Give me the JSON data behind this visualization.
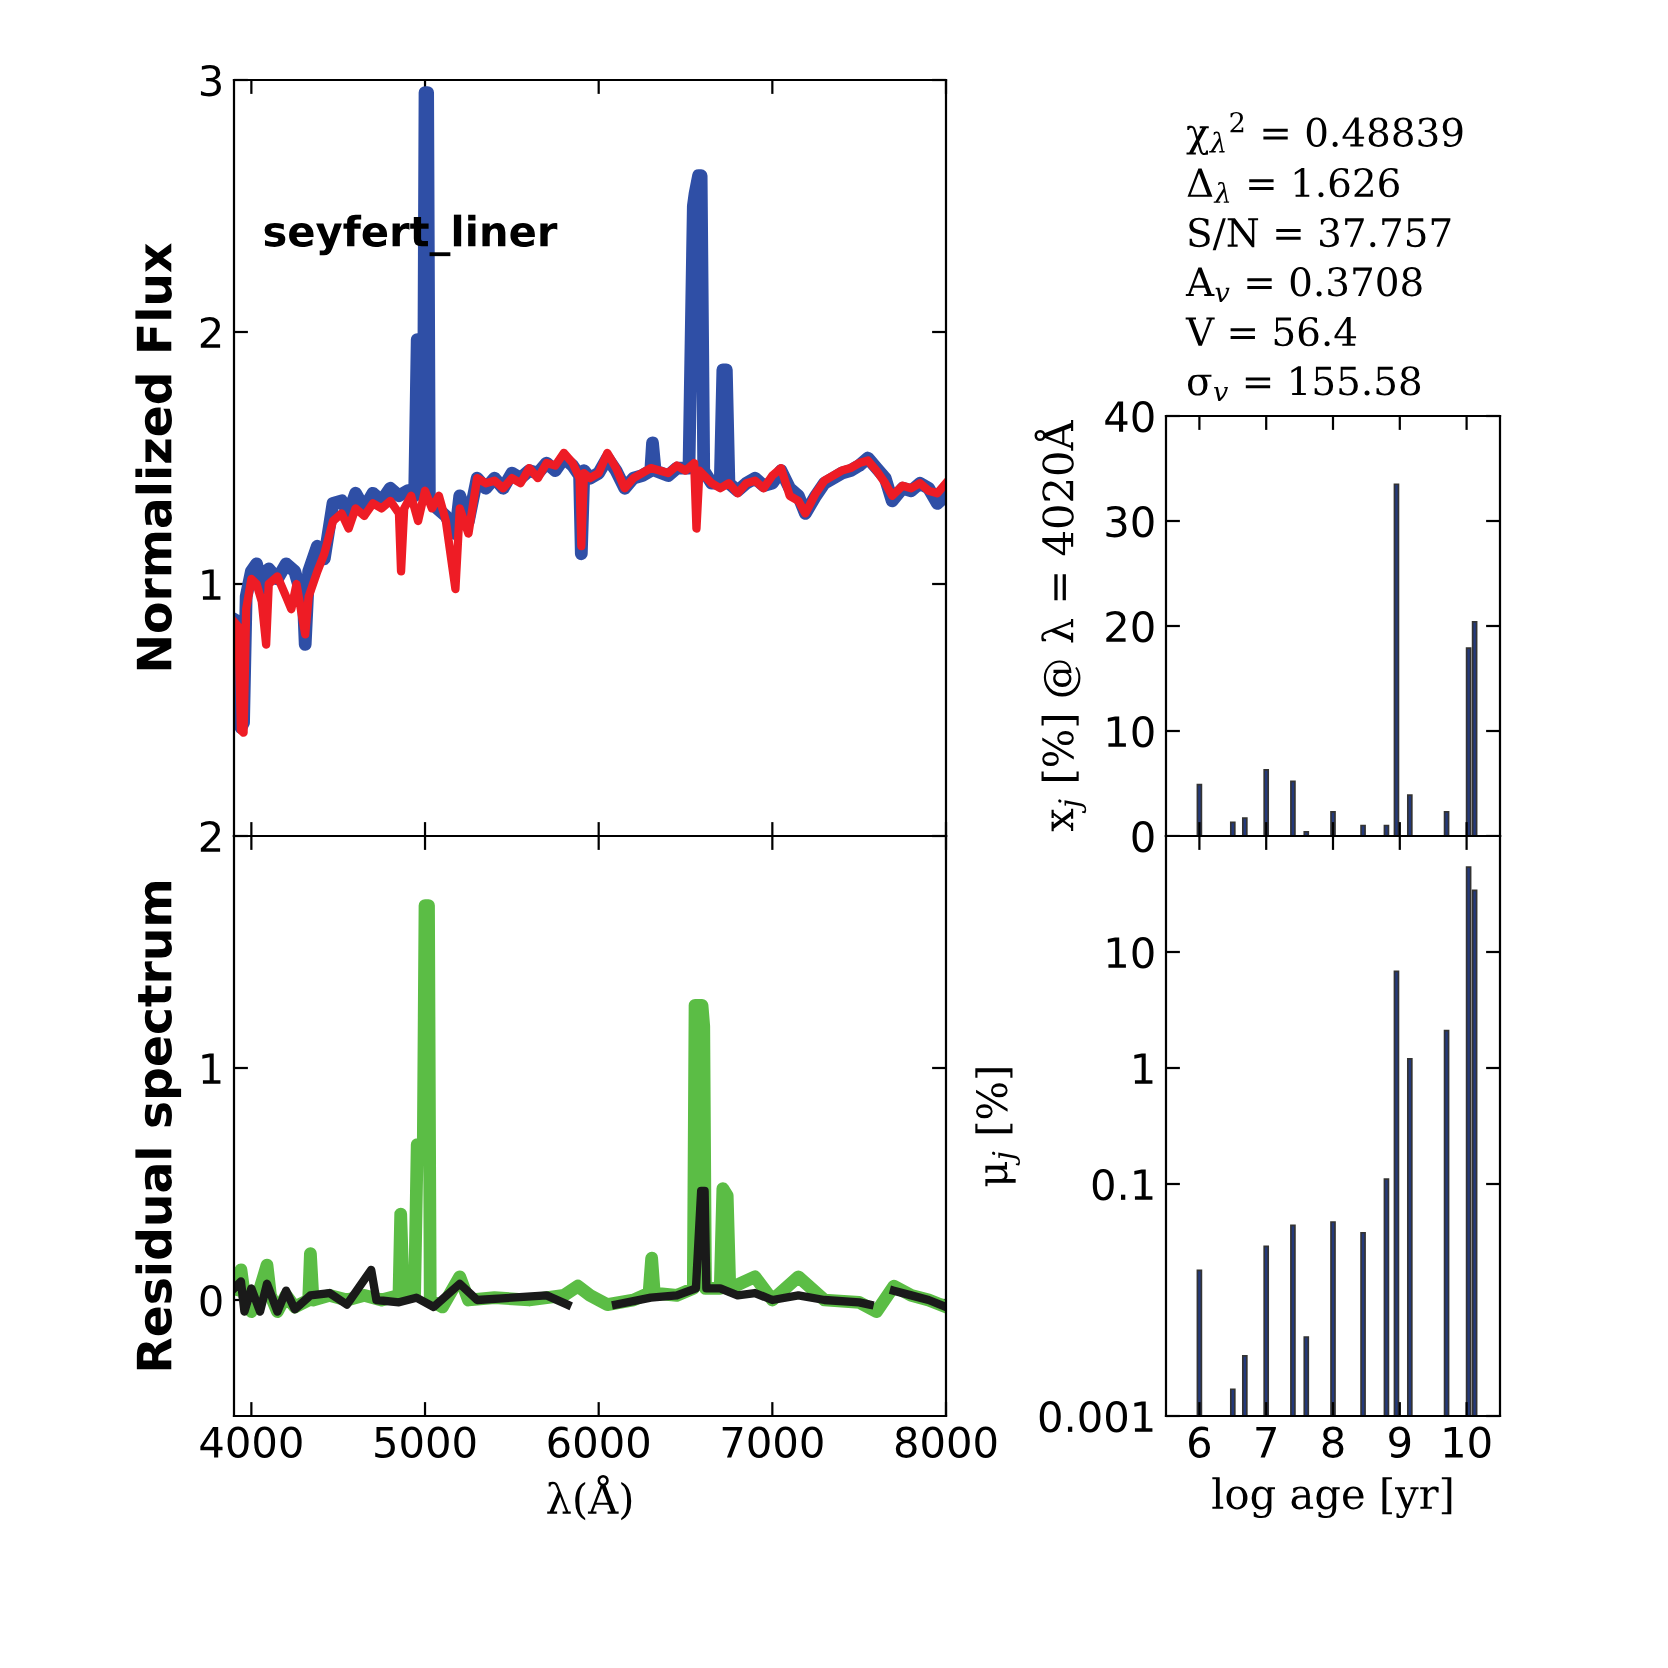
{
  "chart_data": [
    {
      "type": "line",
      "ylabel": "Normalized Flux",
      "xlim": [
        3900,
        8000
      ],
      "xticks": [
        4000,
        5000,
        6000,
        7000,
        8000
      ],
      "ylim": [
        0,
        3
      ],
      "yticks": [
        1,
        2,
        3
      ],
      "tick_labels": "y",
      "annotations": [
        "seyfert_liner"
      ],
      "series": [
        {
          "color": "#2f4fa6",
          "x": [
            3900,
            3925,
            3940,
            3955,
            3970,
            4000,
            4030,
            4060,
            4100,
            4150,
            4200,
            4250,
            4300,
            4310,
            4330,
            4380,
            4420,
            4470,
            4520,
            4560,
            4600,
            4650,
            4700,
            4750,
            4800,
            4850,
            4900,
            4940,
            4955,
            4965,
            4990,
            5000,
            5015,
            5025,
            5070,
            5120,
            5175,
            5200,
            5250,
            5300,
            5350,
            5400,
            5450,
            5500,
            5550,
            5600,
            5650,
            5700,
            5750,
            5800,
            5850,
            5890,
            5900,
            5915,
            5950,
            6000,
            6050,
            6100,
            6150,
            6200,
            6250,
            6300,
            6310,
            6325,
            6400,
            6450,
            6520,
            6545,
            6555,
            6575,
            6590,
            6605,
            6650,
            6700,
            6715,
            6735,
            6750,
            6800,
            6850,
            6900,
            6950,
            7000,
            7050,
            7100,
            7150,
            7190,
            7250,
            7300,
            7350,
            7400,
            7450,
            7500,
            7550,
            7600,
            7650,
            7690,
            7750,
            7800,
            7850,
            7900,
            7950,
            8000
          ],
          "values": [
            0.86,
            0.85,
            0.43,
            0.45,
            0.95,
            1.05,
            1.08,
            0.98,
            1.06,
            1.02,
            1.08,
            1.05,
            0.93,
            0.76,
            1.05,
            1.15,
            1.1,
            1.32,
            1.33,
            1.28,
            1.36,
            1.3,
            1.36,
            1.33,
            1.38,
            1.35,
            1.37,
            1.35,
            1.97,
            1.97,
            1.36,
            2.95,
            2.95,
            1.35,
            1.3,
            1.27,
            1.2,
            1.35,
            1.25,
            1.42,
            1.38,
            1.42,
            1.38,
            1.44,
            1.42,
            1.45,
            1.44,
            1.48,
            1.45,
            1.5,
            1.47,
            1.43,
            1.12,
            1.45,
            1.42,
            1.44,
            1.5,
            1.45,
            1.38,
            1.42,
            1.43,
            1.45,
            1.56,
            1.45,
            1.43,
            1.46,
            1.46,
            2.5,
            2.55,
            2.62,
            2.62,
            1.45,
            1.4,
            1.4,
            1.85,
            1.85,
            1.4,
            1.37,
            1.4,
            1.42,
            1.39,
            1.4,
            1.45,
            1.38,
            1.35,
            1.28,
            1.35,
            1.4,
            1.42,
            1.44,
            1.45,
            1.47,
            1.5,
            1.46,
            1.42,
            1.33,
            1.38,
            1.37,
            1.4,
            1.38,
            1.32,
            1.35
          ]
        },
        {
          "color": "#ee1c25",
          "x": [
            3900,
            3925,
            3940,
            3955,
            3970,
            4000,
            4030,
            4060,
            4085,
            4100,
            4150,
            4200,
            4230,
            4260,
            4310,
            4330,
            4380,
            4420,
            4470,
            4520,
            4560,
            4600,
            4650,
            4700,
            4750,
            4800,
            4850,
            4862,
            4880,
            4920,
            4960,
            5000,
            5040,
            5080,
            5120,
            5175,
            5200,
            5250,
            5300,
            5350,
            5400,
            5450,
            5500,
            5550,
            5600,
            5650,
            5700,
            5750,
            5800,
            5850,
            5890,
            5900,
            5915,
            5950,
            6000,
            6050,
            6100,
            6150,
            6200,
            6250,
            6300,
            6400,
            6450,
            6500,
            6550,
            6563,
            6580,
            6650,
            6700,
            6750,
            6800,
            6850,
            6900,
            6950,
            7000,
            7050,
            7100,
            7150,
            7190,
            7250,
            7300,
            7350,
            7400,
            7450,
            7500,
            7550,
            7600,
            7650,
            7690,
            7750,
            7800,
            7850,
            7900,
            7950,
            8000
          ],
          "values": [
            0.85,
            0.83,
            0.42,
            0.41,
            0.9,
            1.02,
            1.0,
            0.93,
            0.76,
            1.0,
            1.03,
            0.95,
            0.9,
            1.0,
            0.8,
            0.95,
            1.05,
            1.12,
            1.25,
            1.28,
            1.22,
            1.3,
            1.27,
            1.32,
            1.3,
            1.33,
            1.28,
            1.05,
            1.3,
            1.35,
            1.25,
            1.37,
            1.3,
            1.35,
            1.25,
            0.98,
            1.3,
            1.2,
            1.42,
            1.4,
            1.41,
            1.38,
            1.42,
            1.4,
            1.46,
            1.42,
            1.48,
            1.47,
            1.52,
            1.48,
            1.42,
            1.15,
            1.44,
            1.42,
            1.44,
            1.52,
            1.46,
            1.38,
            1.42,
            1.44,
            1.46,
            1.44,
            1.47,
            1.45,
            1.48,
            1.22,
            1.45,
            1.4,
            1.38,
            1.4,
            1.36,
            1.4,
            1.41,
            1.38,
            1.43,
            1.46,
            1.35,
            1.33,
            1.28,
            1.36,
            1.41,
            1.43,
            1.45,
            1.46,
            1.48,
            1.49,
            1.45,
            1.4,
            1.35,
            1.39,
            1.38,
            1.4,
            1.37,
            1.36,
            1.4
          ]
        }
      ]
    },
    {
      "type": "line",
      "ylabel": "Residual spectrum",
      "xlabel": "λ(Å)",
      "xlim": [
        3900,
        8000
      ],
      "xticks": [
        4000,
        5000,
        6000,
        7000,
        8000
      ],
      "ylim": [
        -0.5,
        2
      ],
      "yticks": [
        0,
        1,
        2
      ],
      "series": [
        {
          "color": "#5bbd45",
          "x": [
            3900,
            3940,
            3960,
            4000,
            4050,
            4090,
            4110,
            4150,
            4200,
            4250,
            4330,
            4340,
            4355,
            4450,
            4550,
            4650,
            4750,
            4850,
            4860,
            4875,
            4940,
            4955,
            4990,
            5000,
            5020,
            5030,
            5100,
            5200,
            5250,
            5400,
            5600,
            5800,
            5880,
            5950,
            6050,
            6200,
            6290,
            6305,
            6320,
            6450,
            6545,
            6555,
            6595,
            6605,
            6615,
            6700,
            6715,
            6740,
            6755,
            6900,
            7000,
            7150,
            7300,
            7500,
            7600,
            7700,
            7800,
            7900,
            8000
          ],
          "values": [
            0.05,
            0.13,
            0.02,
            -0.05,
            0.05,
            0.15,
            0.02,
            -0.05,
            0.02,
            -0.03,
            0.0,
            0.2,
            0.0,
            0.02,
            0.0,
            0.02,
            0.0,
            0.02,
            0.37,
            0.02,
            0.02,
            0.67,
            0.67,
            1.7,
            1.7,
            0.0,
            -0.03,
            0.1,
            0.0,
            0.01,
            0.0,
            0.02,
            0.06,
            0.02,
            -0.02,
            0.0,
            0.03,
            0.18,
            0.03,
            0.02,
            0.05,
            1.27,
            1.27,
            1.18,
            0.05,
            0.05,
            0.48,
            0.45,
            0.05,
            0.1,
            0.0,
            0.1,
            0.0,
            -0.01,
            -0.05,
            0.06,
            0.02,
            0.0,
            -0.03
          ]
        },
        {
          "color": "#1a1a1a",
          "x": [
            3900,
            3940,
            3960,
            4000,
            4050,
            4090,
            4150,
            4200,
            4250,
            4340,
            4450,
            4550,
            4690,
            4720,
            4850,
            4950,
            5050,
            5200,
            5300,
            5500,
            5700,
            5820,
            5960,
            6100,
            6300,
            6450,
            6560,
            6590,
            6610,
            6620,
            6700,
            6800,
            6900,
            7000,
            7150,
            7300,
            7500,
            7560,
            7640,
            7700,
            7800,
            7900,
            8000
          ],
          "values": [
            0.05,
            0.08,
            -0.05,
            0.05,
            -0.05,
            0.07,
            -0.05,
            0.04,
            -0.04,
            0.02,
            0.03,
            -0.02,
            0.13,
            0.0,
            -0.01,
            0.01,
            -0.03,
            0.07,
            0.0,
            0.01,
            0.02,
            -0.02,
            null,
            -0.02,
            0.01,
            0.02,
            0.05,
            0.47,
            0.47,
            0.05,
            0.05,
            0.02,
            0.03,
            0.0,
            0.02,
            0.0,
            -0.01,
            -0.02,
            null,
            0.04,
            0.02,
            0.0,
            -0.03
          ]
        }
      ]
    },
    {
      "type": "bar",
      "ylabel": "x$_{j}$ [%] @ λ = 4020Å",
      "xlim": [
        5.5,
        10.5
      ],
      "xticks": [
        6,
        7,
        8,
        9,
        10
      ],
      "ylim": [
        0,
        40
      ],
      "yticks": [
        0,
        10,
        20,
        30,
        40
      ],
      "tick_labels": "y",
      "annotations": [
        "χ$_{λ}$$^{2}$ = 0.48839",
        "Δ$_{λ}$ = 1.626",
        "S/N = 37.757",
        "A$_{v}$ = 0.3708",
        "V = 56.4",
        "σ$_{v}$ = 155.58"
      ],
      "x": [
        6.0,
        6.5,
        6.68,
        7.0,
        7.4,
        7.6,
        8.0,
        8.45,
        8.8,
        8.95,
        9.15,
        9.7,
        10.03,
        10.12
      ],
      "series": [
        {
          "color": "#24397a",
          "values": [
            4.9,
            1.3,
            1.7,
            6.3,
            5.2,
            0.4,
            2.3,
            1.0,
            1.0,
            33.5,
            3.9,
            2.3,
            17.9,
            20.4
          ]
        }
      ]
    },
    {
      "type": "bar",
      "ylabel": "μ$_{j}$ [%]",
      "xlabel": "log age [yr]",
      "log": "y",
      "xlim": [
        5.5,
        10.5
      ],
      "xticks": [
        6,
        7,
        8,
        9,
        10
      ],
      "ylim": [
        0.001,
        100
      ],
      "yticks": [
        0.001,
        0.1,
        1,
        10
      ],
      "x": [
        6.0,
        6.5,
        6.68,
        7.0,
        7.4,
        7.6,
        8.0,
        8.45,
        8.8,
        8.95,
        9.15,
        9.7,
        10.03,
        10.12
      ],
      "series": [
        {
          "color": "#24397a",
          "values": [
            0.018,
            0.0017,
            0.0033,
            0.029,
            0.044,
            0.0048,
            0.047,
            0.038,
            0.11,
            6.8,
            1.2,
            2.1,
            54,
            34
          ]
        }
      ]
    }
  ]
}
